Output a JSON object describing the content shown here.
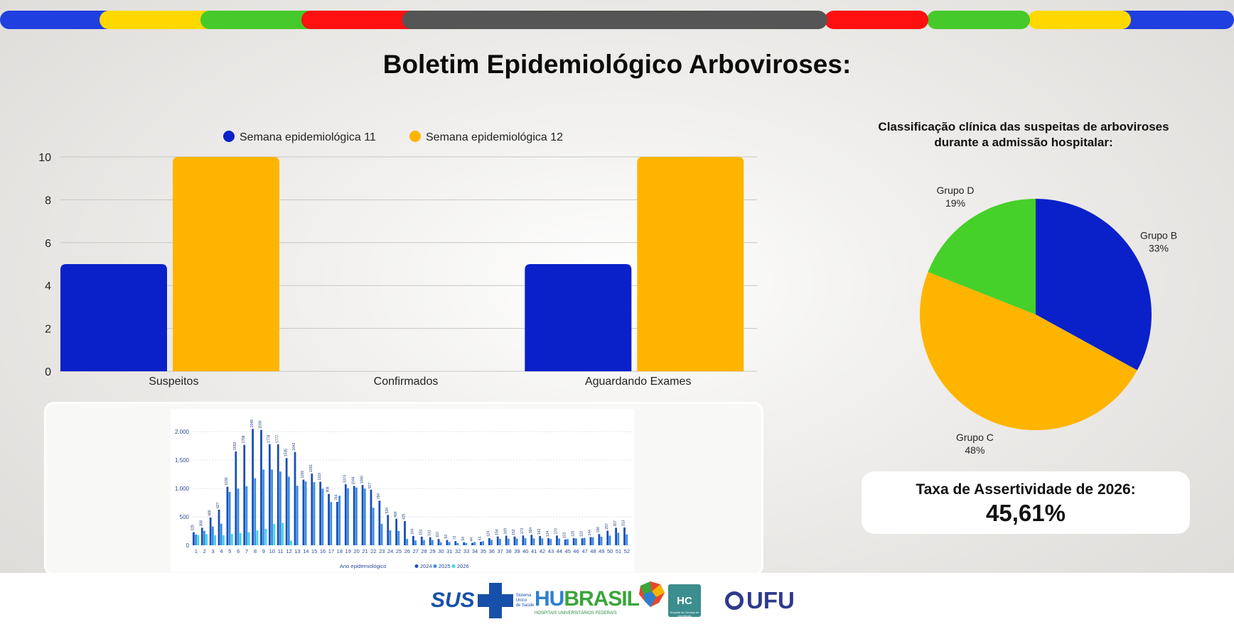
{
  "page": {
    "title": "Boletim Epidemiológico Arboviroses:"
  },
  "stripe_colors": [
    "#1f3fe0",
    "#ffd800",
    "#46c92a",
    "#ff1010",
    "#555555",
    "#ff1010",
    "#46c92a",
    "#ffd800",
    "#1f3fe0"
  ],
  "chart_data": [
    {
      "type": "bar",
      "categories": [
        "Suspeitos",
        "Confirmados",
        "Aguardando Exames"
      ],
      "series": [
        {
          "name": "Semana epidemiológica 11",
          "color": "#0a21c9",
          "values": [
            5,
            0,
            5
          ]
        },
        {
          "name": "Semana epidemiológica 12",
          "color": "#ffb400",
          "values": [
            10,
            0,
            10
          ]
        }
      ],
      "ylim": [
        0,
        10
      ],
      "yticks": [
        0,
        2,
        4,
        6,
        8,
        10
      ],
      "grid": true,
      "legend": "top"
    },
    {
      "type": "pie",
      "title_lines": [
        "Classificação clínica das suspeitas de arboviroses",
        "durante a admissão hospitalar:"
      ],
      "slices": [
        {
          "label": "Grupo B",
          "value": 33,
          "display": "33%",
          "color": "#0a21c9"
        },
        {
          "label": "Grupo C",
          "value": 48,
          "display": "48%",
          "color": "#ffb400"
        },
        {
          "label": "Grupo D",
          "value": 19,
          "display": "19%",
          "color": "#46d02a"
        }
      ]
    },
    {
      "type": "bar",
      "categories": [
        "1",
        "2",
        "3",
        "4",
        "5",
        "6",
        "7",
        "8",
        "9",
        "10",
        "11",
        "12",
        "13",
        "14",
        "15",
        "16",
        "17",
        "18",
        "19",
        "20",
        "21",
        "22",
        "23",
        "24",
        "25",
        "26",
        "27",
        "28",
        "29",
        "30",
        "31",
        "32",
        "33",
        "34",
        "35",
        "36",
        "37",
        "38",
        "39",
        "40",
        "41",
        "42",
        "43",
        "44",
        "45",
        "46",
        "47",
        "48",
        "49",
        "50",
        "51",
        "52"
      ],
      "series": [
        {
          "name": "2024",
          "color": "#1b4fb5",
          "values": [
            229,
            308,
            489,
            627,
            1030,
            1652,
            1768,
            2049,
            2030,
            1778,
            1777,
            1535,
            1642,
            1155,
            1261,
            1119,
            904,
            764,
            1074,
            1044,
            1060,
            977,
            784,
            534,
            466,
            425,
            164,
            151,
            141,
            110,
            93,
            72,
            54,
            44,
            61,
            124,
            154,
            169,
            153,
            172,
            184,
            162,
            124,
            170,
            101,
            125,
            122,
            144,
            196,
            257,
            307,
            313
          ]
        },
        {
          "name": "2025",
          "color": "#3a8de6",
          "values": [
            190,
            253,
            330,
            380,
            938,
            997,
            1038,
            1179,
            1332,
            1333,
            1297,
            1206,
            1047,
            1122,
            1111,
            995,
            760,
            872,
            1004,
            1016,
            997,
            660,
            377,
            261,
            250,
            111,
            84,
            90,
            93,
            53,
            57,
            40,
            39,
            58,
            72,
            95,
            110,
            115,
            118,
            123,
            120,
            121,
            110,
            118,
            108,
            120,
            130,
            140,
            150,
            170,
            220,
            190
          ]
        },
        {
          "name": "2026",
          "color": "#3ad6ea",
          "values": [
            181,
            195,
            175,
            175,
            197,
            212,
            230,
            260,
            290,
            373,
            394,
            80,
            0,
            0,
            0,
            0,
            0,
            0,
            0,
            0,
            0,
            0,
            0,
            0,
            0,
            0,
            0,
            0,
            0,
            0,
            0,
            0,
            0,
            0,
            0,
            0,
            0,
            0,
            0,
            0,
            0,
            0,
            0,
            0,
            0,
            0,
            0,
            0,
            0,
            0,
            0,
            0
          ]
        }
      ],
      "ylim": [
        0,
        2000
      ],
      "yticks": [
        0,
        500,
        1000,
        1500,
        2000
      ],
      "ytick_labels": [
        "0",
        "500",
        "1.000",
        "1.500",
        "2.000"
      ],
      "xlabel": "Ano epidemiológico",
      "legend": "bottom"
    }
  ],
  "assertividade": {
    "label": "Taxa de Assertividade de 2026:",
    "value": "45,61%"
  },
  "footer": {
    "sus": {
      "name": "SUS",
      "sub": [
        "Sistema",
        "Único",
        "de Saúde"
      ]
    },
    "hubrasil": {
      "name_a": "HU",
      "name_b": "BRASIL",
      "sub": "HOSPITAIS UNIVERSITÁRIOS FEDERAIS"
    },
    "hcu": {
      "mark": "HC",
      "sub": "Hospital de Clínicas de Uberlândia"
    },
    "ufu": {
      "name": "UFU"
    }
  }
}
